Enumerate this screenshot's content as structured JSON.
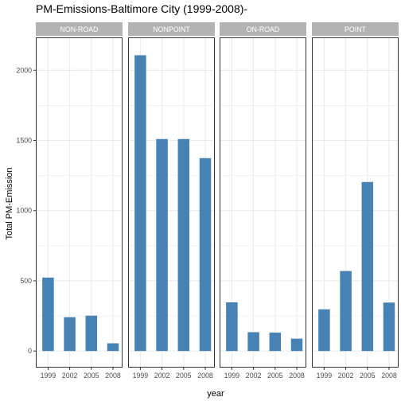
{
  "chart_data": {
    "type": "bar",
    "title": "PM-Emissions-Baltimore City (1999-2008)-",
    "xlabel": "year",
    "ylabel": "Total PM-Emission",
    "categories": [
      "1999",
      "2002",
      "2005",
      "2008"
    ],
    "ylim": [
      -118,
      2234
    ],
    "yticks": [
      0,
      500,
      1000,
      1500,
      2000
    ],
    "grid": true,
    "legend": "none",
    "bar_color": "#4682B4",
    "panel_bg": "#ffffff",
    "grid_color": "#ebebeb",
    "strip_bg": "#b3b3b3",
    "panels": [
      {
        "name": "NON-ROAD",
        "values": [
          523,
          241,
          252,
          55
        ]
      },
      {
        "name": "NONPOINT",
        "values": [
          2107,
          1510,
          1510,
          1374
        ]
      },
      {
        "name": "ON-ROAD",
        "values": [
          347,
          134,
          131,
          88
        ]
      },
      {
        "name": "POINT",
        "values": [
          297,
          570,
          1204,
          345
        ]
      }
    ]
  }
}
